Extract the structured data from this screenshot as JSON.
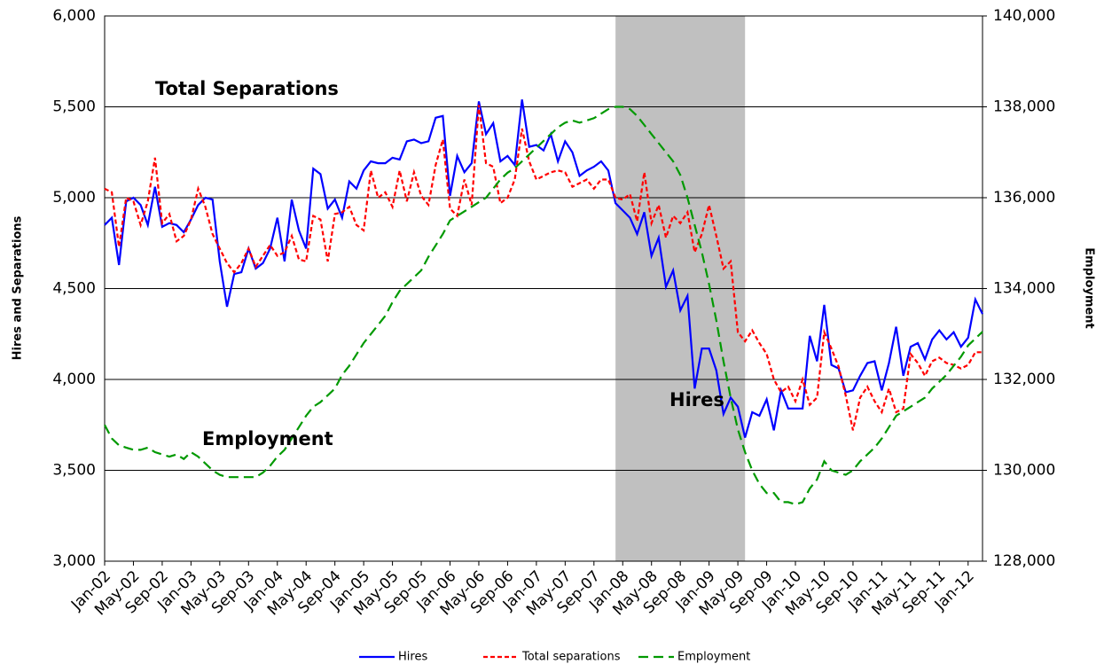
{
  "chart_data": {
    "type": "line",
    "y_label": "Hires and Separations",
    "y2_label": "Employment",
    "annotations": [
      "Total Separations",
      "Employment",
      "Hires"
    ],
    "shaded_range": [
      71,
      89
    ],
    "shade_color": "#c0c0c0",
    "grid": true,
    "legend": "bottom",
    "categories": [
      "Jan-02",
      null,
      null,
      null,
      "May-02",
      null,
      null,
      null,
      "Sep-02",
      null,
      null,
      null,
      "Jan-03",
      null,
      null,
      null,
      "May-03",
      null,
      null,
      null,
      "Sep-03",
      null,
      null,
      null,
      "Jan-04",
      null,
      null,
      null,
      "May-04",
      null,
      null,
      null,
      "Sep-04",
      null,
      null,
      null,
      "Jan-05",
      null,
      null,
      null,
      "May-05",
      null,
      null,
      null,
      "Sep-05",
      null,
      null,
      null,
      "Jan-06",
      null,
      null,
      null,
      "May-06",
      null,
      null,
      null,
      "Sep-06",
      null,
      null,
      null,
      "Jan-07",
      null,
      null,
      null,
      "May-07",
      null,
      null,
      null,
      "Sep-07",
      null,
      null,
      null,
      "Jan-08",
      null,
      null,
      null,
      "May-08",
      null,
      null,
      null,
      "Sep-08",
      null,
      null,
      null,
      "Jan-09",
      null,
      null,
      null,
      "May-09",
      null,
      null,
      null,
      "Sep-09",
      null,
      null,
      null,
      "Jan-10",
      null,
      null,
      null,
      "May-10",
      null,
      null,
      null,
      "Sep-10",
      null,
      null,
      null,
      "Jan-11",
      null,
      null,
      null,
      "May-11",
      null,
      null,
      null,
      "Sep-11",
      null,
      null,
      null,
      "Jan-12",
      null,
      null
    ],
    "ylim": [
      3000,
      6000
    ],
    "yticks": [
      {
        "value": 3000,
        "label": "3,000"
      },
      {
        "value": 3500,
        "label": "3,500"
      },
      {
        "value": 4000,
        "label": "4,000"
      },
      {
        "value": 4500,
        "label": "4,500"
      },
      {
        "value": 5000,
        "label": "5,000"
      },
      {
        "value": 5500,
        "label": "5,500"
      },
      {
        "value": 6000,
        "label": "6,000"
      }
    ],
    "y2lim": [
      128000,
      140000
    ],
    "y2ticks": [
      {
        "value": 128000,
        "label": "128,000"
      },
      {
        "value": 130000,
        "label": "130,000"
      },
      {
        "value": 132000,
        "label": "132,000"
      },
      {
        "value": 134000,
        "label": "134,000"
      },
      {
        "value": 136000,
        "label": "136,000"
      },
      {
        "value": 138000,
        "label": "138,000"
      },
      {
        "value": 140000,
        "label": "140,000"
      }
    ],
    "series": [
      {
        "name": "Hires",
        "color": "#0000ff",
        "dash": "solid",
        "values": [
          4850,
          4890,
          4630,
          4980,
          5000,
          4960,
          4850,
          5060,
          4840,
          4860,
          4850,
          4810,
          4880,
          4960,
          5000,
          4990,
          4650,
          4400,
          4580,
          4590,
          4720,
          4610,
          4640,
          4720,
          4890,
          4650,
          4990,
          4820,
          4720,
          5160,
          5130,
          4940,
          4990,
          4890,
          5090,
          5050,
          5150,
          5200,
          5190,
          5190,
          5220,
          5210,
          5310,
          5320,
          5300,
          5310,
          5440,
          5450,
          5010,
          5230,
          5140,
          5190,
          5530,
          5350,
          5410,
          5200,
          5230,
          5180,
          5540,
          5280,
          5290,
          5260,
          5350,
          5200,
          5310,
          5250,
          5120,
          5150,
          5170,
          5200,
          5150,
          4970,
          4930,
          4890,
          4800,
          4920,
          4680,
          4780,
          4510,
          4600,
          4380,
          4460,
          3950,
          4170,
          4170,
          4050,
          3810,
          3900,
          3850,
          3680,
          3820,
          3800,
          3890,
          3720,
          3940,
          3840,
          3840,
          3840,
          4240,
          4100,
          4410,
          4080,
          4060,
          3930,
          3940,
          4020,
          4090,
          4100,
          3940,
          4090,
          4290,
          4020,
          4180,
          4200,
          4110,
          4220,
          4270,
          4220,
          4260,
          4180,
          4230,
          4440,
          4360
        ]
      },
      {
        "name": "Total separations",
        "color": "#ff0000",
        "dash": "dashed",
        "values": [
          5050,
          5030,
          4730,
          5000,
          4980,
          4850,
          4980,
          5220,
          4860,
          4910,
          4760,
          4790,
          4880,
          5050,
          4950,
          4800,
          4720,
          4640,
          4590,
          4640,
          4720,
          4620,
          4680,
          4740,
          4680,
          4700,
          4790,
          4660,
          4650,
          4900,
          4880,
          4650,
          4910,
          4920,
          4950,
          4850,
          4820,
          5150,
          5000,
          5030,
          4950,
          5150,
          4980,
          5140,
          5010,
          4960,
          5180,
          5320,
          4940,
          4900,
          5100,
          4960,
          5510,
          5190,
          5170,
          4970,
          5000,
          5100,
          5380,
          5200,
          5100,
          5120,
          5140,
          5150,
          5140,
          5060,
          5080,
          5100,
          5050,
          5100,
          5100,
          5000,
          4990,
          5020,
          4870,
          5140,
          4860,
          4960,
          4780,
          4900,
          4860,
          4920,
          4700,
          4800,
          4960,
          4790,
          4610,
          4650,
          4260,
          4210,
          4270,
          4200,
          4140,
          4000,
          3930,
          3960,
          3880,
          4000,
          3860,
          3900,
          4260,
          4170,
          4070,
          3910,
          3720,
          3900,
          3960,
          3880,
          3820,
          3950,
          3820,
          3840,
          4140,
          4090,
          4020,
          4100,
          4120,
          4090,
          4080,
          4060,
          4080,
          4150,
          4150
        ]
      },
      {
        "name": "Employment",
        "color": "#009900",
        "dash": "longdash",
        "axis": "y2",
        "values": [
          131000,
          130700,
          130550,
          130500,
          130450,
          130450,
          130500,
          130400,
          130350,
          130300,
          130350,
          130250,
          130400,
          130300,
          130150,
          130000,
          129900,
          129850,
          129850,
          129850,
          129850,
          129850,
          129950,
          130100,
          130300,
          130450,
          130700,
          130950,
          131200,
          131400,
          131500,
          131650,
          131800,
          132100,
          132300,
          132550,
          132800,
          133000,
          133200,
          133400,
          133700,
          133950,
          134100,
          134250,
          134400,
          134700,
          134950,
          135200,
          135500,
          135600,
          135700,
          135800,
          135900,
          136000,
          136200,
          136400,
          136550,
          136650,
          136800,
          136950,
          137100,
          137250,
          137400,
          137550,
          137650,
          137700,
          137650,
          137700,
          137750,
          137850,
          137950,
          138000,
          138000,
          137950,
          137800,
          137600,
          137400,
          137200,
          137000,
          136800,
          136500,
          136000,
          135400,
          134800,
          134100,
          133300,
          132400,
          131600,
          130900,
          130400,
          130000,
          129700,
          129500,
          129500,
          129300,
          129300,
          129250,
          129300,
          129600,
          129800,
          130200,
          130000,
          129950,
          129900,
          130000,
          130200,
          130350,
          130500,
          130700,
          130950,
          131200,
          131300,
          131400,
          131500,
          131600,
          131800,
          131950,
          132100,
          132300,
          132500,
          132750,
          132900,
          133050
        ]
      }
    ]
  }
}
